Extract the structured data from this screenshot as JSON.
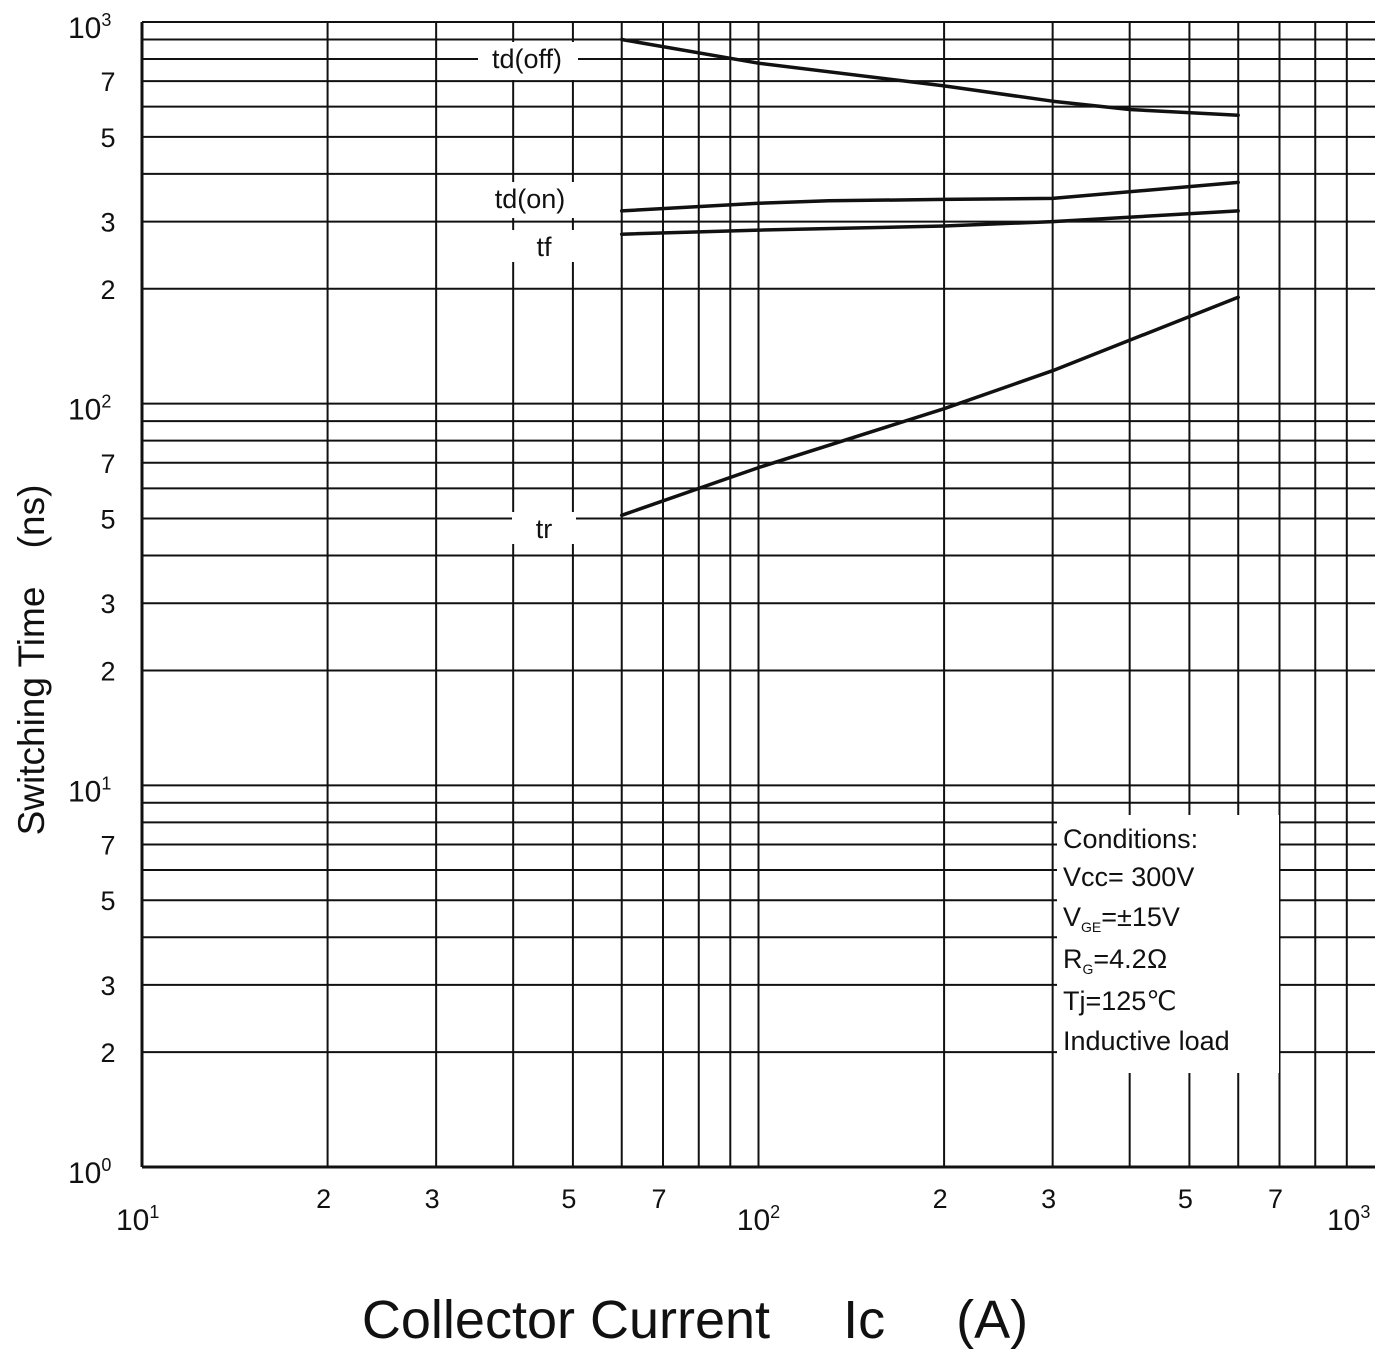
{
  "chart_data": {
    "type": "line",
    "xlabel": "Collector Current",
    "xlabel_symbol": "Ic",
    "xlabel_unit": "(A)",
    "ylabel": "Switching Time",
    "ylabel_unit": "(ns)",
    "x_scale": "log",
    "y_scale": "log",
    "xlim": [
      10,
      1000
    ],
    "ylim": [
      1,
      1000
    ],
    "grid": true,
    "x_major_ticks": [
      {
        "base": "10",
        "exp": "1",
        "value": 10
      },
      {
        "base": "10",
        "exp": "2",
        "value": 100
      },
      {
        "base": "10",
        "exp": "3",
        "value": 1000
      }
    ],
    "y_major_ticks": [
      {
        "base": "10",
        "exp": "0",
        "value": 1
      },
      {
        "base": "10",
        "exp": "1",
        "value": 10
      },
      {
        "base": "10",
        "exp": "2",
        "value": 100
      },
      {
        "base": "10",
        "exp": "3",
        "value": 1000
      }
    ],
    "minor_tick_labels": [
      "2",
      "3",
      "5",
      "7"
    ],
    "series": [
      {
        "name": "td(off)",
        "x": [
          60,
          100,
          200,
          300,
          400,
          600
        ],
        "y": [
          900,
          780,
          680,
          620,
          590,
          570
        ]
      },
      {
        "name": "td(on)",
        "x": [
          60,
          100,
          130,
          200,
          300,
          600
        ],
        "y": [
          320,
          335,
          340,
          343,
          345,
          380
        ]
      },
      {
        "name": "tf",
        "x": [
          60,
          100,
          200,
          300,
          600
        ],
        "y": [
          278,
          285,
          292,
          300,
          320
        ]
      },
      {
        "name": "tr",
        "x": [
          60,
          100,
          200,
          300,
          600
        ],
        "y": [
          51,
          68,
          97,
          122,
          190
        ]
      }
    ],
    "conditions": {
      "heading": "Conditions:",
      "vcc": "Vcc= 300V",
      "vge_main": "V",
      "vge_sub": "GE",
      "vge_value": "=±15V",
      "rg_main": "R",
      "rg_sub": "G",
      "rg_value": "=4.2Ω",
      "tj": "Tj=125℃",
      "load": "Inductive load"
    }
  }
}
